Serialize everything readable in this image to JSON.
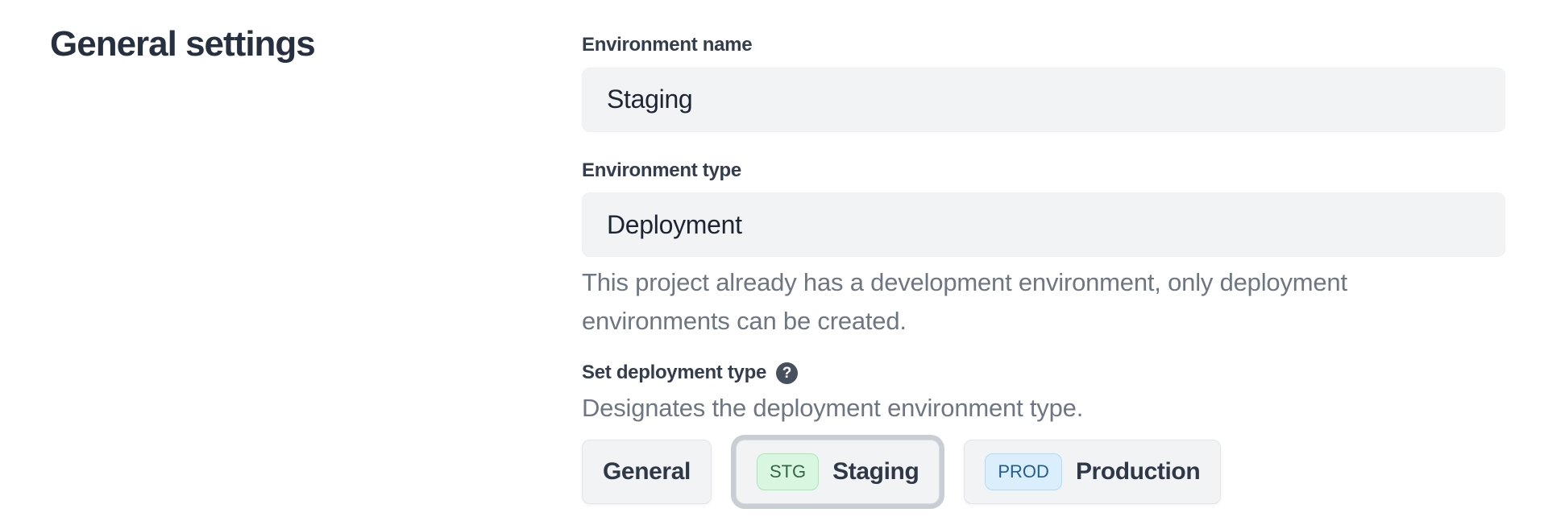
{
  "page": {
    "title": "General settings"
  },
  "form": {
    "environment_name": {
      "label": "Environment name",
      "value": "Staging"
    },
    "environment_type": {
      "label": "Environment type",
      "value": "Deployment",
      "helper": "This project already has a development environment, only deployment environments can be created."
    },
    "deployment_type": {
      "label": "Set deployment type",
      "help_icon": "?",
      "description": "Designates the deployment environment type.",
      "options": [
        {
          "label": "General",
          "badge": "",
          "selected": false
        },
        {
          "label": "Staging",
          "badge": "STG",
          "selected": true
        },
        {
          "label": "Production",
          "badge": "PROD",
          "selected": false
        }
      ]
    }
  },
  "colors": {
    "heading_text": "#273040",
    "label_text": "#333d4d",
    "input_bg": "#f2f3f5",
    "muted_text": "#6e7684",
    "button_bg": "#f2f3f5",
    "selected_ring": "#c9ced5",
    "stg_badge_bg": "#d9f7e0",
    "stg_badge_border": "#a5e9b3",
    "stg_badge_text": "#33634a",
    "prod_badge_bg": "#dbeefb",
    "prod_badge_border": "#b1dbf7",
    "prod_badge_text": "#245e8e",
    "help_icon_bg": "#47505e"
  }
}
